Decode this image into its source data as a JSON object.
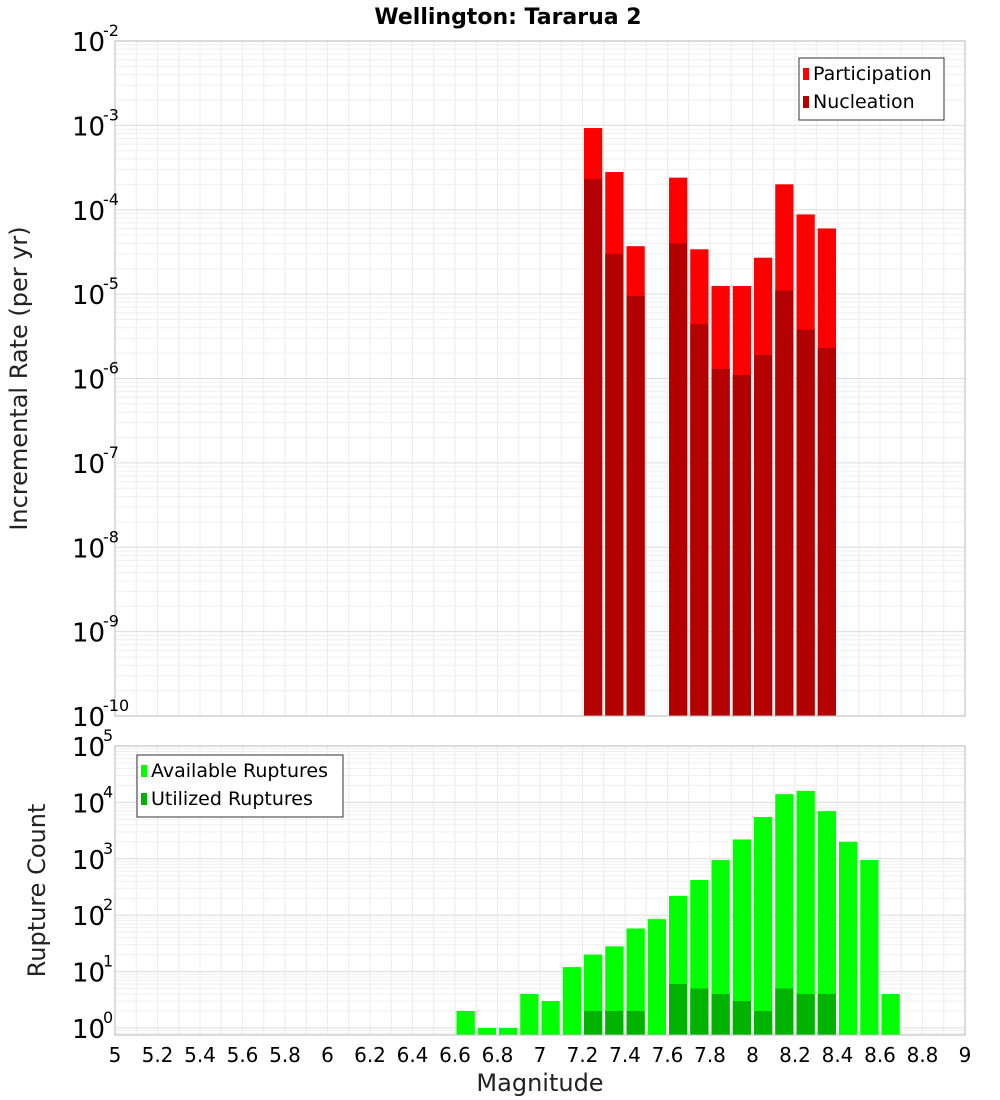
{
  "title": "Wellington: Tararua 2",
  "chart_data": [
    {
      "type": "bar",
      "ylabel": "Incremental Rate (per yr)",
      "yscale": "log",
      "ylim": [
        1e-10,
        0.01
      ],
      "xlim": [
        5,
        9
      ],
      "grid": true,
      "legend_placement": "top-right",
      "bin_width": 0.1,
      "series": [
        {
          "name": "Participation",
          "color": "#ff0000",
          "x": [
            7.25,
            7.35,
            7.45,
            7.65,
            7.75,
            7.85,
            7.95,
            8.05,
            8.15,
            8.25,
            8.35
          ],
          "values": [
            0.00093,
            0.00028,
            3.7e-05,
            0.00024,
            3.4e-05,
            1.25e-05,
            1.25e-05,
            2.7e-05,
            0.0002,
            8.8e-05,
            6e-05
          ]
        },
        {
          "name": "Nucleation",
          "color": "#b30000",
          "x": [
            7.25,
            7.35,
            7.45,
            7.65,
            7.75,
            7.85,
            7.95,
            8.05,
            8.15,
            8.25,
            8.35
          ],
          "values": [
            0.00023,
            3e-05,
            9.5e-06,
            4e-05,
            4.4e-06,
            1.3e-06,
            1.1e-06,
            1.9e-06,
            1.1e-05,
            3.8e-06,
            2.3e-06
          ]
        }
      ]
    },
    {
      "type": "bar",
      "ylabel": "Rupture Count",
      "xlabel": "Magnitude",
      "yscale": "log",
      "ylim": [
        0.75,
        100000
      ],
      "xlim": [
        5,
        9
      ],
      "grid": true,
      "legend_placement": "top-left",
      "bin_width": 0.1,
      "x_ticks": [
        "5",
        "5.2",
        "5.4",
        "5.6",
        "5.8",
        "6",
        "6.2",
        "6.4",
        "6.6",
        "6.8",
        "7",
        "7.2",
        "7.4",
        "7.6",
        "7.8",
        "8",
        "8.2",
        "8.4",
        "8.6",
        "8.8",
        "9"
      ],
      "series": [
        {
          "name": "Available Ruptures",
          "color": "#00ff00",
          "x": [
            6.65,
            6.75,
            6.85,
            6.95,
            7.05,
            7.15,
            7.25,
            7.35,
            7.45,
            7.55,
            7.65,
            7.75,
            7.85,
            7.95,
            8.05,
            8.15,
            8.25,
            8.35,
            8.45,
            8.55,
            8.65
          ],
          "values": [
            2,
            1,
            1,
            4,
            3,
            12,
            20,
            28,
            58,
            85,
            220,
            420,
            950,
            2200,
            5500,
            14000,
            16000,
            7000,
            2000,
            950,
            4
          ]
        },
        {
          "name": "Utilized Ruptures",
          "color": "#00b300",
          "x": [
            7.25,
            7.35,
            7.45,
            7.65,
            7.75,
            7.85,
            7.95,
            8.05,
            8.15,
            8.25,
            8.35
          ],
          "values": [
            2,
            2,
            2,
            6,
            5,
            4,
            3,
            2,
            5,
            4,
            4
          ]
        }
      ]
    }
  ]
}
